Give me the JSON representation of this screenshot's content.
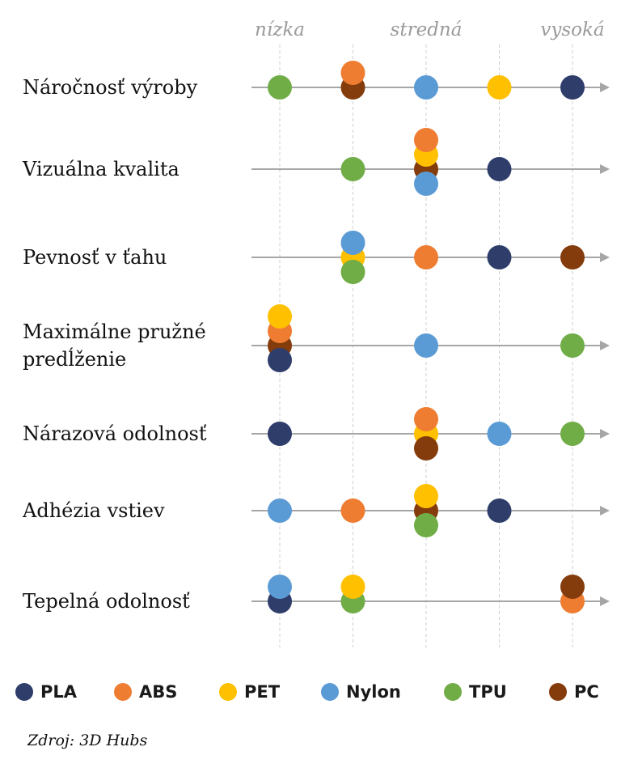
{
  "chart_data": {
    "type": "scatter",
    "x_levels": [
      "nízka",
      "",
      "stredná",
      "",
      "vysoká"
    ],
    "xlim": [
      1,
      5
    ],
    "rows": [
      {
        "label": [
          "Náročnosť výroby"
        ],
        "points": [
          {
            "series": "TPU",
            "x": 1
          },
          {
            "series": "PC",
            "x": 2
          },
          {
            "series": "ABS",
            "x": 2
          },
          {
            "series": "Nylon",
            "x": 3
          },
          {
            "series": "PET",
            "x": 4
          },
          {
            "series": "PLA",
            "x": 5
          }
        ]
      },
      {
        "label": [
          "Vizuálna kvalita"
        ],
        "points": [
          {
            "series": "TPU",
            "x": 2
          },
          {
            "series": "PC",
            "x": 3
          },
          {
            "series": "PET",
            "x": 3
          },
          {
            "series": "Nylon",
            "x": 3
          },
          {
            "series": "ABS",
            "x": 3
          },
          {
            "series": "PLA",
            "x": 4
          }
        ]
      },
      {
        "label": [
          "Pevnosť v ťahu"
        ],
        "points": [
          {
            "series": "PET",
            "x": 2
          },
          {
            "series": "Nylon",
            "x": 2
          },
          {
            "series": "TPU",
            "x": 2
          },
          {
            "series": "ABS",
            "x": 3
          },
          {
            "series": "PLA",
            "x": 4
          },
          {
            "series": "PC",
            "x": 5
          }
        ]
      },
      {
        "label": [
          "Maximálne pružné",
          "predĺženie"
        ],
        "points": [
          {
            "series": "PC",
            "x": 1
          },
          {
            "series": "ABS",
            "x": 1
          },
          {
            "series": "PLA",
            "x": 1
          },
          {
            "series": "PET",
            "x": 1
          },
          {
            "series": "Nylon",
            "x": 3
          },
          {
            "series": "TPU",
            "x": 5
          }
        ]
      },
      {
        "label": [
          "Nárazová odolnosť"
        ],
        "points": [
          {
            "series": "PLA",
            "x": 1
          },
          {
            "series": "PET",
            "x": 3
          },
          {
            "series": "ABS",
            "x": 3
          },
          {
            "series": "PC",
            "x": 3
          },
          {
            "series": "Nylon",
            "x": 4
          },
          {
            "series": "TPU",
            "x": 5
          }
        ]
      },
      {
        "label": [
          "Adhézia vstiev"
        ],
        "points": [
          {
            "series": "Nylon",
            "x": 1
          },
          {
            "series": "ABS",
            "x": 2
          },
          {
            "series": "PC",
            "x": 3
          },
          {
            "series": "PET",
            "x": 3
          },
          {
            "series": "TPU",
            "x": 3
          },
          {
            "series": "PLA",
            "x": 4
          }
        ]
      },
      {
        "label": [
          "Tepelná odolnosť"
        ],
        "points": [
          {
            "series": "PLA",
            "x": 1
          },
          {
            "series": "Nylon",
            "x": 1
          },
          {
            "series": "TPU",
            "x": 2
          },
          {
            "series": "PET",
            "x": 2
          },
          {
            "series": "ABS",
            "x": 5
          },
          {
            "series": "PC",
            "x": 5
          }
        ]
      }
    ],
    "series": [
      {
        "name": "PLA",
        "color": "#2f3d6b"
      },
      {
        "name": "ABS",
        "color": "#ee7d31"
      },
      {
        "name": "PET",
        "color": "#ffc000"
      },
      {
        "name": "Nylon",
        "color": "#5b9bd5"
      },
      {
        "name": "TPU",
        "color": "#70ad47"
      },
      {
        "name": "PC",
        "color": "#843c0c"
      }
    ],
    "grid": true,
    "legend_position": "bottom"
  },
  "source": "Zdroj: 3D Hubs"
}
